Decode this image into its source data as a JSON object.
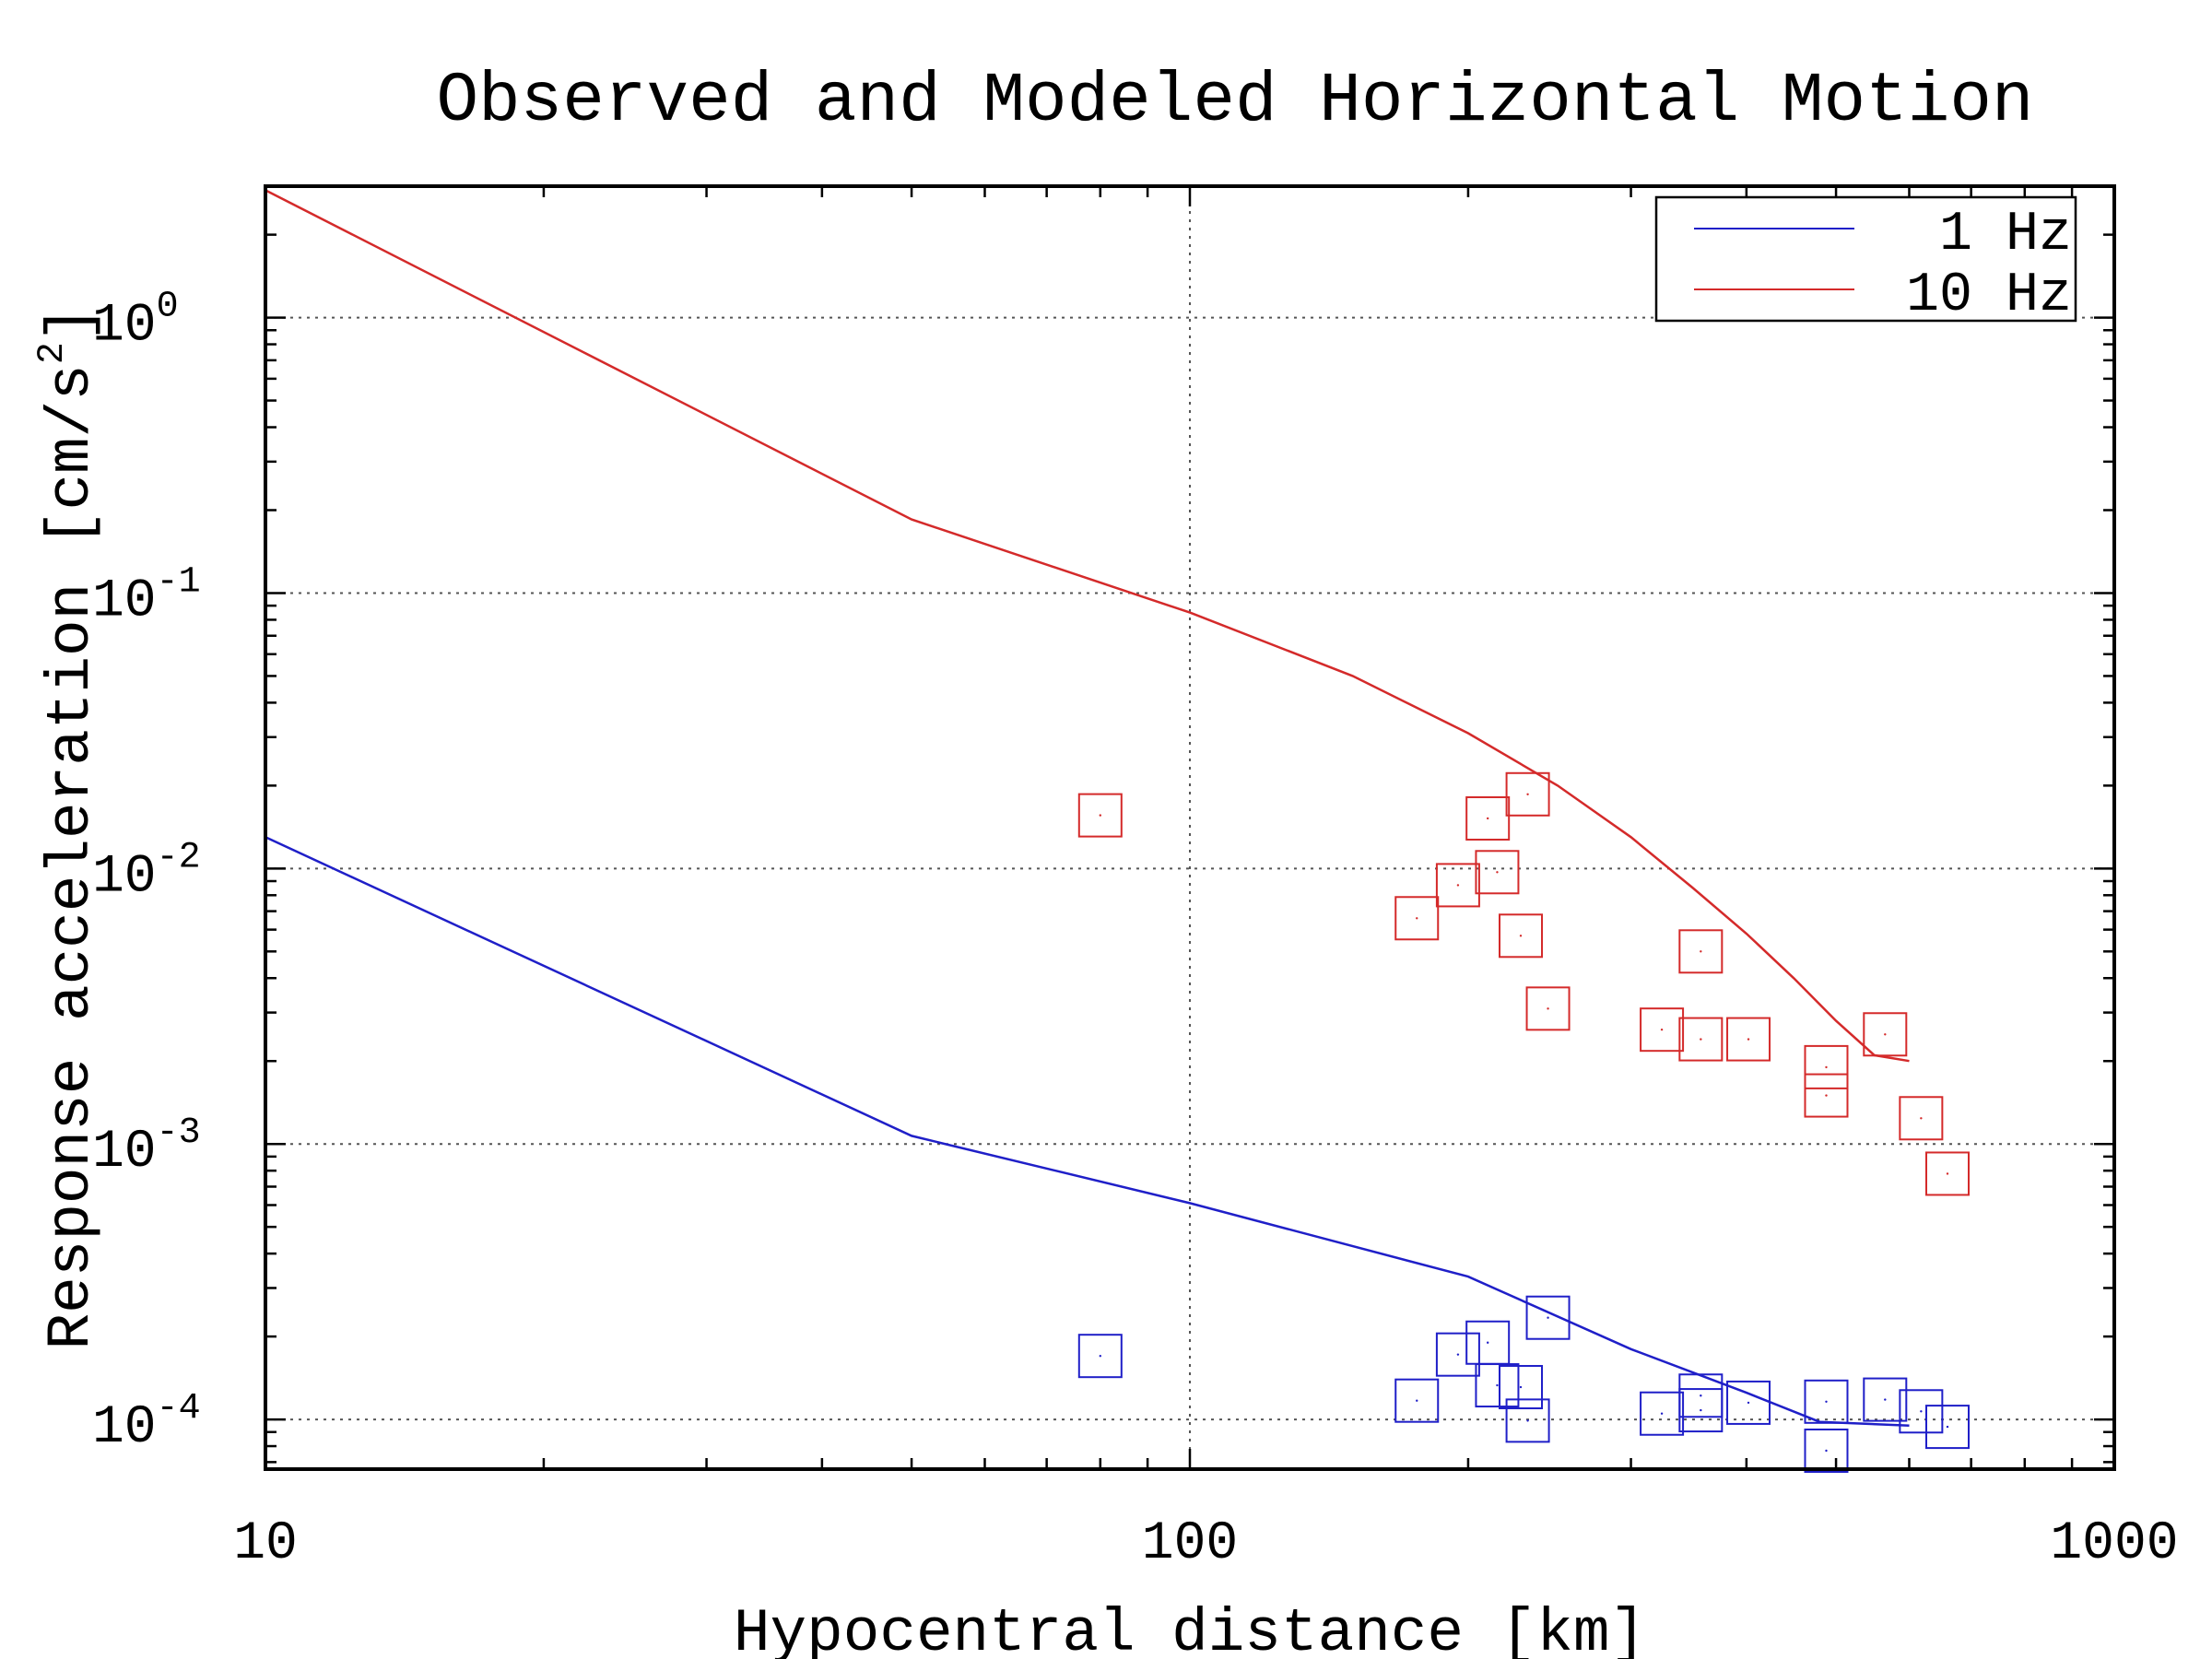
{
  "chart_data": {
    "type": "scatter",
    "title": "Observed and Modeled Horizontal Motion",
    "xlabel": "Hypocentral distance [km]",
    "ylabel": "Response acceleration [cm/s",
    "ylabel_sup": "2",
    "ylabel_close": "]",
    "x_scale": "log",
    "y_scale": "log",
    "xlim": [
      10,
      1000
    ],
    "ylim": [
      6.6e-05,
      3.0
    ],
    "x_tick_labels": [
      {
        "value": 10,
        "label": "10"
      },
      {
        "value": 100,
        "label": "100"
      },
      {
        "value": 1000,
        "label": "1000"
      }
    ],
    "y_tick_labels": [
      {
        "value": 1,
        "base": "10",
        "exp": "0"
      },
      {
        "value": 0.1,
        "base": "10",
        "exp": "-1"
      },
      {
        "value": 0.01,
        "base": "10",
        "exp": "-2"
      },
      {
        "value": 0.001,
        "base": "10",
        "exp": "-3"
      },
      {
        "value": 0.0001,
        "base": "10",
        "exp": "-4"
      }
    ],
    "grid": "dotted, at major ticks",
    "legend_position": "top-right",
    "series": [
      {
        "name": "1 Hz",
        "kind": "line",
        "color": "#1f1fc8",
        "x": [
          10,
          50,
          100,
          200,
          300,
          400,
          480,
          600
        ],
        "y": [
          0.013,
          0.00107,
          0.00061,
          0.00033,
          0.00018,
          0.000125,
          9.8e-05,
          9.5e-05
        ]
      },
      {
        "name": "10 Hz",
        "kind": "line",
        "color": "#d42a2a",
        "x": [
          10,
          50,
          100,
          150,
          200,
          250,
          300,
          350,
          400,
          450,
          500,
          550,
          600
        ],
        "y": [
          2.9,
          0.185,
          0.085,
          0.05,
          0.031,
          0.02,
          0.013,
          0.0085,
          0.0058,
          0.004,
          0.0028,
          0.0021,
          0.002
        ]
      },
      {
        "kind": "scatter",
        "marker": "square",
        "color": "#d42a2a",
        "x": [
          80,
          176,
          195,
          210,
          215,
          228,
          232,
          244,
          324,
          357,
          357,
          402,
          488,
          488,
          565,
          618,
          660
        ],
        "y": [
          0.0156,
          0.0066,
          0.0087,
          0.0152,
          0.0097,
          0.0057,
          0.0186,
          0.0031,
          0.0026,
          0.005,
          0.0024,
          0.0024,
          0.0019,
          0.0015,
          0.0025,
          0.00124,
          0.00078
        ]
      },
      {
        "kind": "scatter",
        "marker": "square",
        "color": "#1f1fc8",
        "x": [
          80,
          176,
          195,
          210,
          215,
          228,
          232,
          244,
          324,
          357,
          357,
          402,
          488,
          488,
          565,
          618,
          660
        ],
        "y": [
          0.00017,
          0.000117,
          0.000172,
          0.00019,
          0.000133,
          0.000131,
          9.9e-05,
          0.000234,
          0.000105,
          0.000122,
          0.000108,
          0.000115,
          0.000116,
          7.7e-05,
          0.000118,
          0.000107,
          9.4e-05
        ]
      }
    ]
  }
}
